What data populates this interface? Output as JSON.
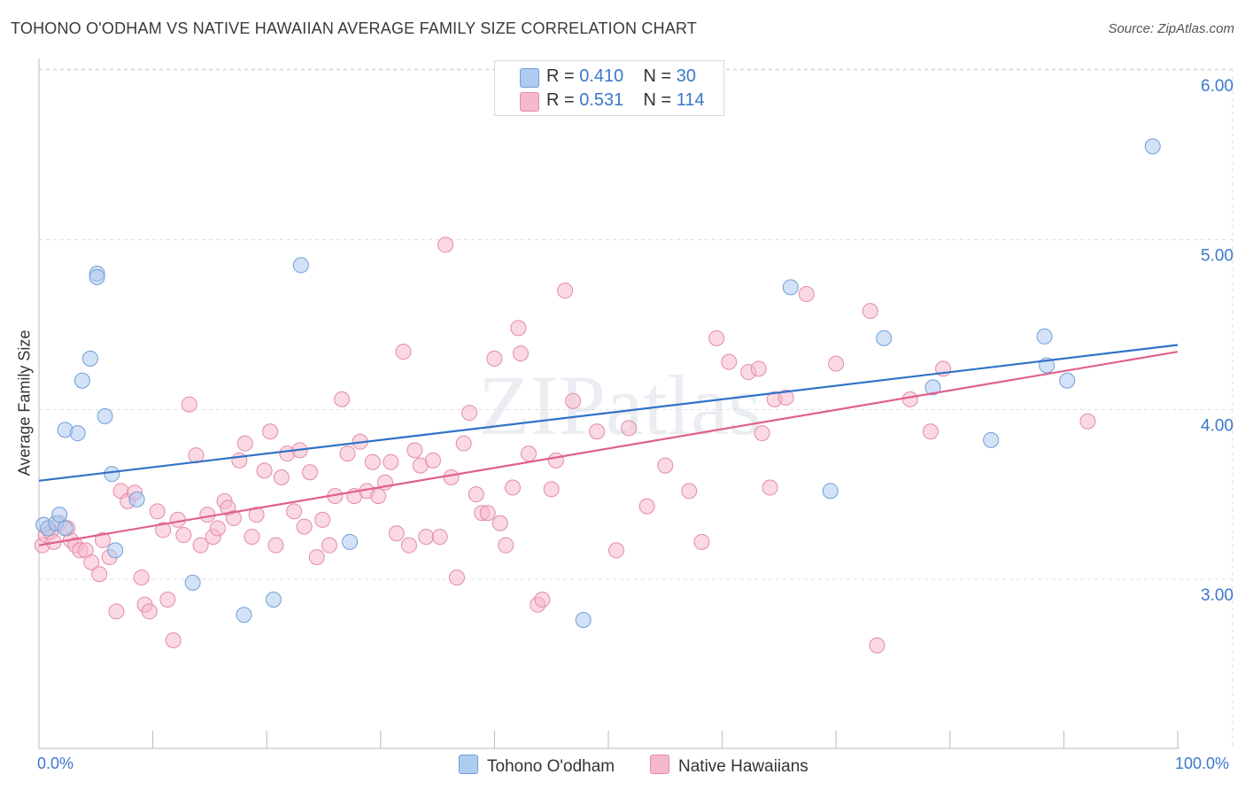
{
  "title": "TOHONO O'ODHAM VS NATIVE HAWAIIAN AVERAGE FAMILY SIZE CORRELATION CHART",
  "source": "Source: ZipAtlas.com",
  "watermark": "ZIPatlas",
  "legend": {
    "rows": [
      {
        "r_label": "R =",
        "r_value": "0.410",
        "n_label": "N =",
        "n_value": "30"
      },
      {
        "r_label": "R =",
        "r_value": "0.531",
        "n_label": "N =",
        "n_value": "114"
      }
    ]
  },
  "colors": {
    "series1_fill": "#aecbf0",
    "series1_stroke": "#6f9ed8",
    "series1_line": "#3072c8",
    "series2_fill": "#f6b9cc",
    "series2_stroke": "#e48aa8",
    "series2_line": "#e0608d",
    "accent_text": "#3a78c9",
    "grid": "#dddddd"
  },
  "chart_data": {
    "type": "scatter",
    "title": "TOHONO O'ODHAM VS NATIVE HAWAIIAN AVERAGE FAMILY SIZE CORRELATION CHART",
    "xlabel": "",
    "ylabel": "Average Family Size",
    "xlim": [
      0,
      100
    ],
    "ylim": [
      2.1,
      6.1
    ],
    "x_tick_labels": [
      "0.0%",
      "100.0%"
    ],
    "y_ticks": [
      3.0,
      4.0,
      5.0,
      6.0
    ],
    "y_tick_labels": [
      "3.00",
      "4.00",
      "5.00",
      "6.00"
    ],
    "grid": true,
    "legend_position": "top-center",
    "series": [
      {
        "name": "Tohono O'odham",
        "trend": [
          [
            0,
            3.58
          ],
          [
            100,
            4.38
          ]
        ],
        "points": [
          [
            0.4,
            3.32
          ],
          [
            0.8,
            3.3
          ],
          [
            1.5,
            3.33
          ],
          [
            1.8,
            3.38
          ],
          [
            2.3,
            3.3
          ],
          [
            2.3,
            3.88
          ],
          [
            3.4,
            3.86
          ],
          [
            3.8,
            4.17
          ],
          [
            4.5,
            4.3
          ],
          [
            5.1,
            4.8
          ],
          [
            5.1,
            4.78
          ],
          [
            5.8,
            3.96
          ],
          [
            6.4,
            3.62
          ],
          [
            6.7,
            3.17
          ],
          [
            8.6,
            3.47
          ],
          [
            13.5,
            2.98
          ],
          [
            18.0,
            2.79
          ],
          [
            20.6,
            2.88
          ],
          [
            23.0,
            4.85
          ],
          [
            27.3,
            3.22
          ],
          [
            47.8,
            2.76
          ],
          [
            66.0,
            4.72
          ],
          [
            69.5,
            3.52
          ],
          [
            74.2,
            4.42
          ],
          [
            78.5,
            4.13
          ],
          [
            83.6,
            3.82
          ],
          [
            88.3,
            4.43
          ],
          [
            88.5,
            4.26
          ],
          [
            90.3,
            4.17
          ],
          [
            97.8,
            5.55
          ]
        ]
      },
      {
        "name": "Native Hawaiians",
        "trend": [
          [
            0,
            3.2
          ],
          [
            100,
            4.34
          ]
        ],
        "points": [
          [
            0.3,
            3.2
          ],
          [
            0.6,
            3.26
          ],
          [
            1.0,
            3.28
          ],
          [
            1.3,
            3.22
          ],
          [
            1.8,
            3.33
          ],
          [
            2.5,
            3.3
          ],
          [
            2.8,
            3.23
          ],
          [
            3.2,
            3.2
          ],
          [
            3.6,
            3.17
          ],
          [
            4.1,
            3.17
          ],
          [
            4.6,
            3.1
          ],
          [
            5.3,
            3.03
          ],
          [
            5.6,
            3.23
          ],
          [
            6.2,
            3.13
          ],
          [
            6.8,
            2.81
          ],
          [
            7.2,
            3.52
          ],
          [
            7.8,
            3.46
          ],
          [
            8.4,
            3.51
          ],
          [
            9.0,
            3.01
          ],
          [
            9.3,
            2.85
          ],
          [
            9.7,
            2.81
          ],
          [
            10.4,
            3.4
          ],
          [
            10.9,
            3.29
          ],
          [
            11.3,
            2.88
          ],
          [
            11.8,
            2.64
          ],
          [
            12.2,
            3.35
          ],
          [
            12.7,
            3.26
          ],
          [
            13.2,
            4.03
          ],
          [
            13.8,
            3.73
          ],
          [
            14.2,
            3.2
          ],
          [
            14.8,
            3.38
          ],
          [
            15.3,
            3.25
          ],
          [
            15.7,
            3.3
          ],
          [
            16.3,
            3.46
          ],
          [
            16.6,
            3.42
          ],
          [
            17.1,
            3.36
          ],
          [
            17.6,
            3.7
          ],
          [
            18.1,
            3.8
          ],
          [
            18.7,
            3.25
          ],
          [
            19.1,
            3.38
          ],
          [
            19.8,
            3.64
          ],
          [
            20.3,
            3.87
          ],
          [
            20.8,
            3.2
          ],
          [
            21.3,
            3.6
          ],
          [
            21.8,
            3.74
          ],
          [
            22.4,
            3.4
          ],
          [
            22.9,
            3.76
          ],
          [
            23.3,
            3.31
          ],
          [
            23.8,
            3.63
          ],
          [
            24.4,
            3.13
          ],
          [
            24.9,
            3.35
          ],
          [
            25.5,
            3.2
          ],
          [
            26.0,
            3.49
          ],
          [
            26.6,
            4.06
          ],
          [
            27.1,
            3.74
          ],
          [
            27.7,
            3.49
          ],
          [
            28.2,
            3.81
          ],
          [
            28.8,
            3.52
          ],
          [
            29.3,
            3.69
          ],
          [
            29.8,
            3.49
          ],
          [
            30.4,
            3.57
          ],
          [
            30.9,
            3.69
          ],
          [
            31.4,
            3.27
          ],
          [
            32.0,
            4.34
          ],
          [
            32.5,
            3.2
          ],
          [
            33.0,
            3.76
          ],
          [
            33.5,
            3.67
          ],
          [
            34.0,
            3.25
          ],
          [
            34.6,
            3.7
          ],
          [
            35.2,
            3.25
          ],
          [
            35.7,
            4.97
          ],
          [
            36.2,
            3.6
          ],
          [
            36.7,
            3.01
          ],
          [
            37.3,
            3.8
          ],
          [
            37.8,
            3.98
          ],
          [
            38.4,
            3.5
          ],
          [
            38.9,
            3.39
          ],
          [
            39.4,
            3.39
          ],
          [
            40.0,
            4.3
          ],
          [
            40.5,
            3.33
          ],
          [
            41.0,
            3.2
          ],
          [
            41.6,
            3.54
          ],
          [
            42.1,
            4.48
          ],
          [
            42.3,
            4.33
          ],
          [
            43.0,
            3.74
          ],
          [
            43.8,
            2.85
          ],
          [
            44.2,
            2.88
          ],
          [
            45.0,
            3.53
          ],
          [
            45.4,
            3.7
          ],
          [
            46.2,
            4.7
          ],
          [
            46.9,
            4.05
          ],
          [
            49.0,
            3.87
          ],
          [
            50.7,
            3.17
          ],
          [
            51.8,
            3.89
          ],
          [
            53.4,
            3.43
          ],
          [
            55.0,
            3.67
          ],
          [
            57.1,
            3.52
          ],
          [
            58.2,
            3.22
          ],
          [
            59.5,
            4.42
          ],
          [
            60.6,
            4.28
          ],
          [
            62.3,
            4.22
          ],
          [
            63.2,
            4.24
          ],
          [
            63.5,
            3.86
          ],
          [
            64.2,
            3.54
          ],
          [
            64.6,
            4.06
          ],
          [
            65.6,
            4.07
          ],
          [
            67.4,
            4.68
          ],
          [
            70.0,
            4.27
          ],
          [
            73.0,
            4.58
          ],
          [
            73.6,
            2.61
          ],
          [
            76.5,
            4.06
          ],
          [
            78.3,
            3.87
          ],
          [
            79.4,
            4.24
          ],
          [
            92.1,
            3.93
          ]
        ]
      }
    ]
  },
  "y_axis_title": "Average Family Size",
  "x_axis": {
    "min_label": "0.0%",
    "max_label": "100.0%"
  },
  "bottom_legend": {
    "series1": "Tohono O'odham",
    "series2": "Native Hawaiians"
  }
}
